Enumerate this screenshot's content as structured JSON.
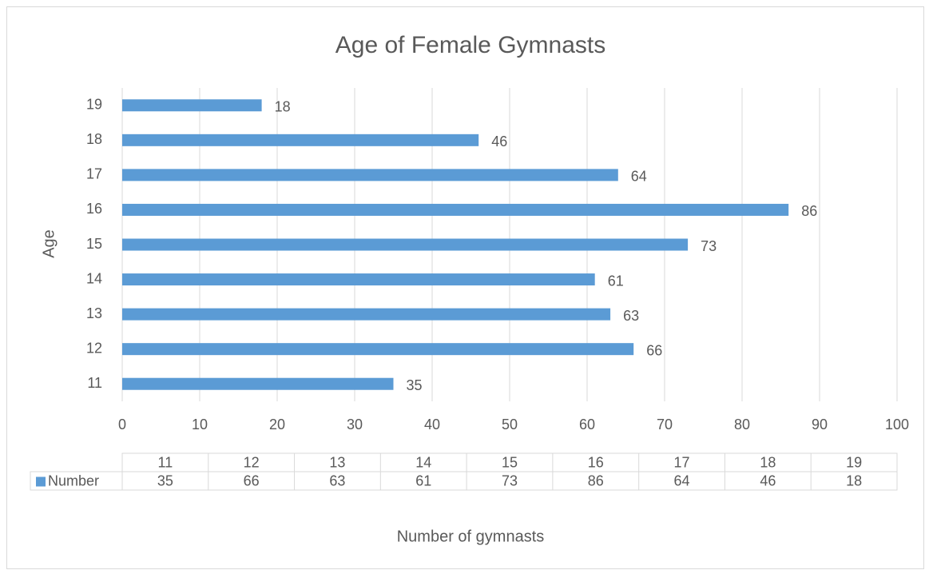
{
  "chart_data": {
    "type": "bar",
    "orientation": "horizontal",
    "title": "Age of Female Gymnasts",
    "x_label": "Number of gymnasts",
    "y_label": "Age",
    "categories": [
      "11",
      "12",
      "13",
      "14",
      "15",
      "16",
      "17",
      "18",
      "19"
    ],
    "series": [
      {
        "name": "Number",
        "color": "#5b9bd5",
        "values": [
          35,
          66,
          63,
          61,
          73,
          86,
          64,
          46,
          18
        ]
      }
    ],
    "xlim": [
      0,
      100
    ],
    "xticks": [
      0,
      10,
      20,
      30,
      40,
      50,
      60,
      70,
      80,
      90,
      100
    ],
    "grid": true,
    "data_table": true
  }
}
